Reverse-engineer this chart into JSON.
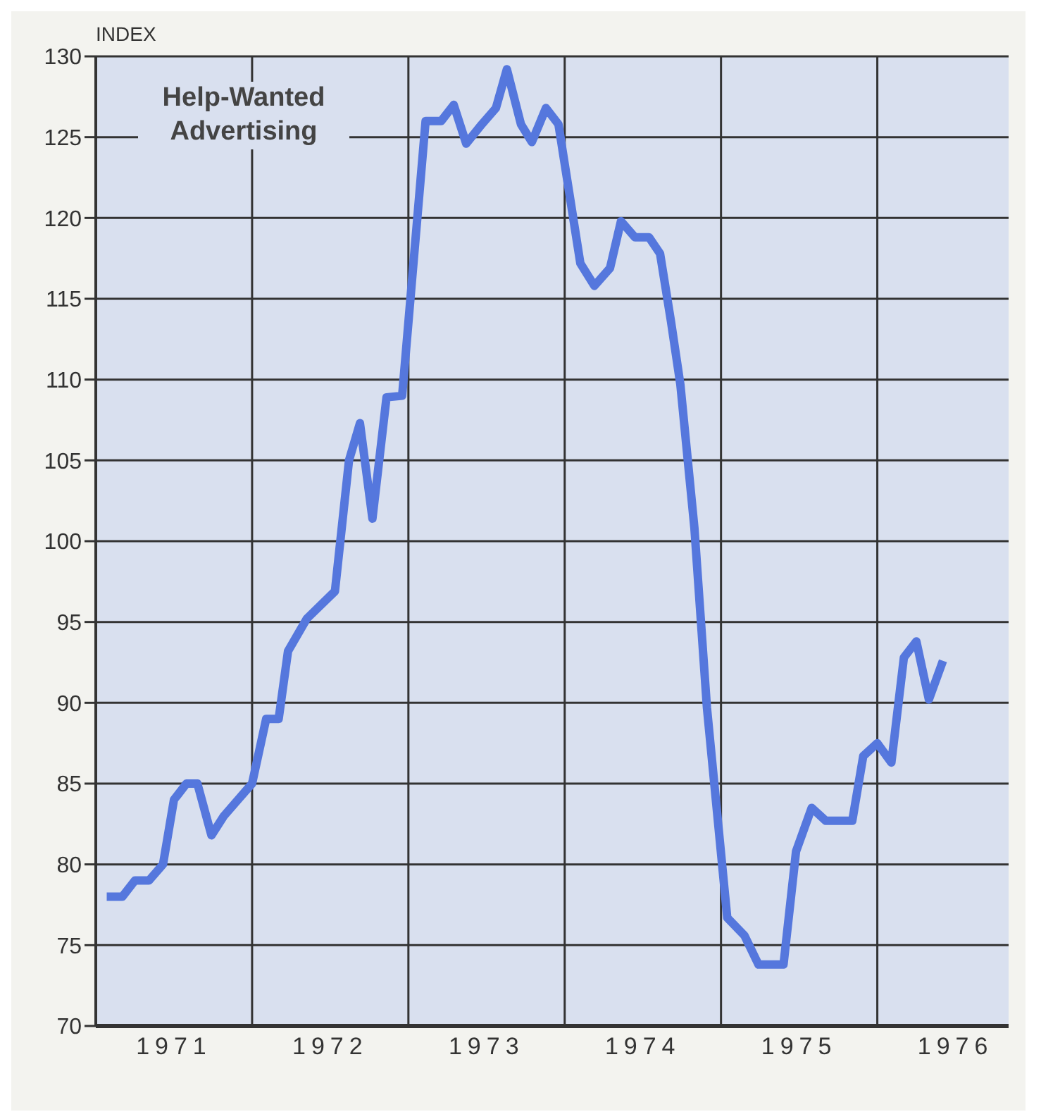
{
  "chart_data": {
    "type": "line",
    "ylabel": "INDEX",
    "xlim": [
      1971,
      1976.84
    ],
    "xticks": [
      {
        "value": 1971,
        "label": null
      },
      {
        "value": 1971.5,
        "label": "1971"
      },
      {
        "value": 1972,
        "label": null
      },
      {
        "value": 1972.5,
        "label": "1972"
      },
      {
        "value": 1973,
        "label": null
      },
      {
        "value": 1973.5,
        "label": "1973"
      },
      {
        "value": 1974,
        "label": null
      },
      {
        "value": 1974.5,
        "label": "1974"
      },
      {
        "value": 1975,
        "label": null
      },
      {
        "value": 1975.5,
        "label": "1975"
      },
      {
        "value": 1976,
        "label": null
      },
      {
        "value": 1976.5,
        "label": "1976"
      }
    ],
    "ylim": [
      70,
      130
    ],
    "yticks": [
      70,
      75,
      80,
      85,
      90,
      95,
      100,
      105,
      110,
      115,
      120,
      125,
      130
    ],
    "grid": true,
    "legend": false,
    "marker": "none",
    "line_style": "solid",
    "series": [
      {
        "name": "Help-Wanted Advertising",
        "color": "#5577dd",
        "x": [
          1971.07,
          1971.17,
          1971.25,
          1971.34,
          1971.43,
          1971.5,
          1971.58,
          1971.65,
          1971.74,
          1971.82,
          1971.91,
          1972.0,
          1972.09,
          1972.17,
          1972.23,
          1972.35,
          1972.53,
          1972.62,
          1972.69,
          1972.77,
          1972.86,
          1972.96,
          1973.11,
          1973.21,
          1973.29,
          1973.37,
          1973.47,
          1973.56,
          1973.63,
          1973.72,
          1973.79,
          1973.88,
          1973.96,
          1974.1,
          1974.19,
          1974.29,
          1974.36,
          1974.45,
          1974.54,
          1974.61,
          1974.68,
          1974.74,
          1974.83,
          1974.91,
          1974.96,
          1975.04,
          1975.15,
          1975.24,
          1975.4,
          1975.48,
          1975.58,
          1975.67,
          1975.84,
          1975.91,
          1976.0,
          1976.09,
          1976.17,
          1976.25,
          1976.33,
          1976.42
        ],
        "values": [
          78,
          78,
          79,
          79,
          80,
          84,
          85,
          85,
          81.8,
          83,
          84,
          85,
          89,
          89,
          93.2,
          95.2,
          96.9,
          105,
          107.3,
          101.4,
          108.9,
          109,
          126,
          126,
          127,
          124.6,
          125.8,
          126.8,
          129.2,
          125.8,
          124.7,
          126.8,
          125.8,
          117.2,
          115.8,
          116.9,
          119.8,
          118.8,
          118.8,
          117.8,
          113.6,
          109.7,
          100.8,
          89.7,
          84.7,
          76.7,
          75.6,
          73.8,
          73.8,
          80.8,
          83.5,
          82.7,
          82.7,
          86.7,
          87.5,
          86.3,
          92.8,
          93.8,
          90.2,
          92.6
        ]
      }
    ]
  }
}
